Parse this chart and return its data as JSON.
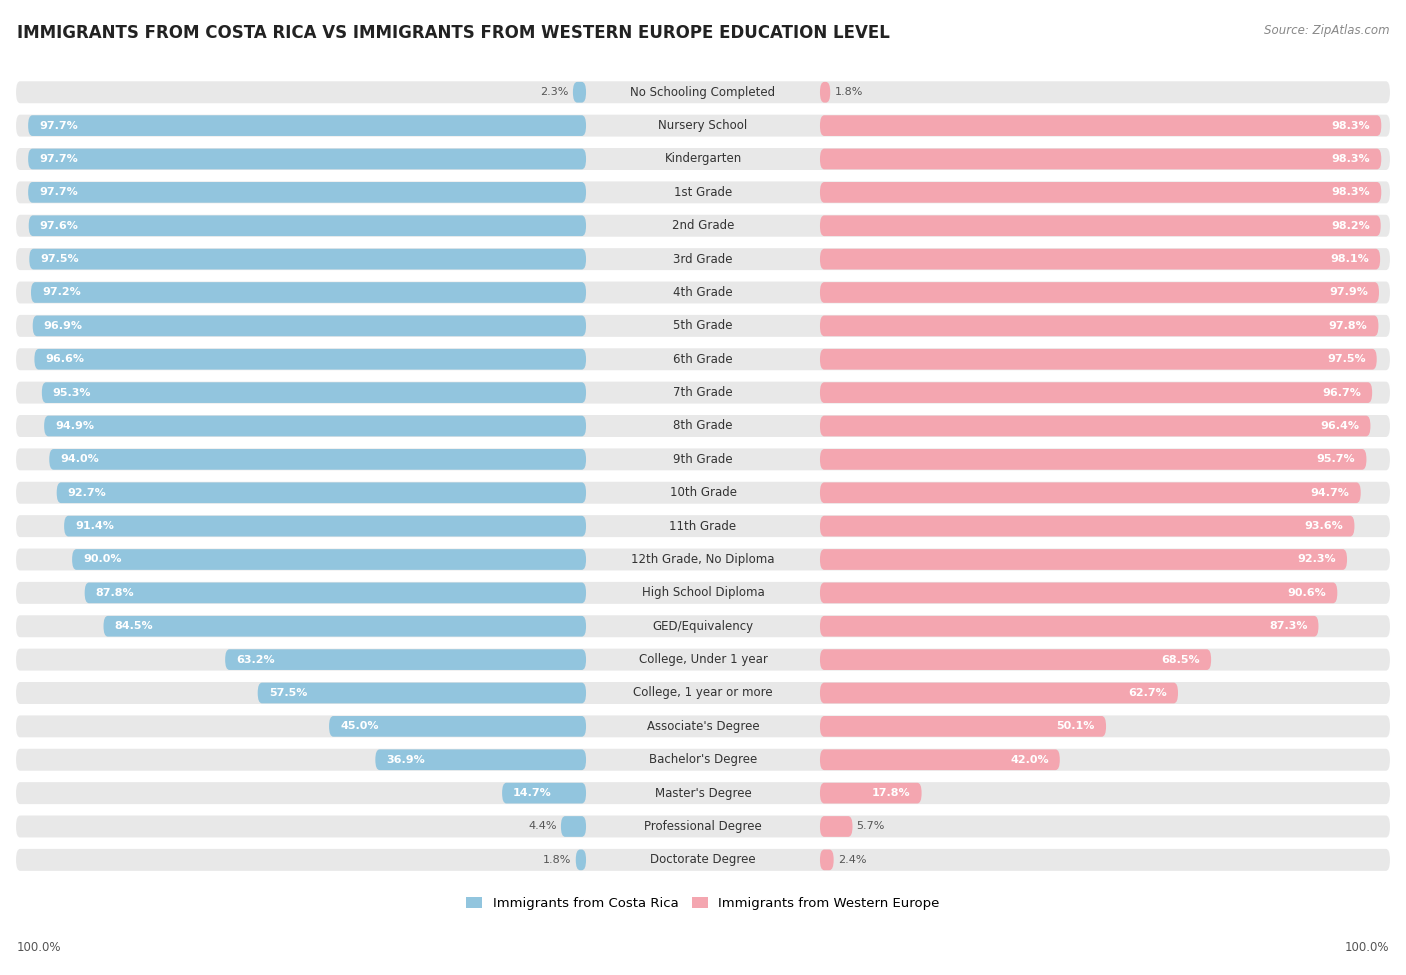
{
  "title": "IMMIGRANTS FROM COSTA RICA VS IMMIGRANTS FROM WESTERN EUROPE EDUCATION LEVEL",
  "source": "Source: ZipAtlas.com",
  "categories": [
    "No Schooling Completed",
    "Nursery School",
    "Kindergarten",
    "1st Grade",
    "2nd Grade",
    "3rd Grade",
    "4th Grade",
    "5th Grade",
    "6th Grade",
    "7th Grade",
    "8th Grade",
    "9th Grade",
    "10th Grade",
    "11th Grade",
    "12th Grade, No Diploma",
    "High School Diploma",
    "GED/Equivalency",
    "College, Under 1 year",
    "College, 1 year or more",
    "Associate's Degree",
    "Bachelor's Degree",
    "Master's Degree",
    "Professional Degree",
    "Doctorate Degree"
  ],
  "costa_rica": [
    2.3,
    97.7,
    97.7,
    97.7,
    97.6,
    97.5,
    97.2,
    96.9,
    96.6,
    95.3,
    94.9,
    94.0,
    92.7,
    91.4,
    90.0,
    87.8,
    84.5,
    63.2,
    57.5,
    45.0,
    36.9,
    14.7,
    4.4,
    1.8
  ],
  "western_europe": [
    1.8,
    98.3,
    98.3,
    98.3,
    98.2,
    98.1,
    97.9,
    97.8,
    97.5,
    96.7,
    96.4,
    95.7,
    94.7,
    93.6,
    92.3,
    90.6,
    87.3,
    68.5,
    62.7,
    50.1,
    42.0,
    17.8,
    5.7,
    2.4
  ],
  "blue_color": "#92C5DE",
  "pink_color": "#F4A6B0",
  "row_bg_color": "#E8E8E8",
  "white_color": "#FFFFFF",
  "title_fontsize": 12,
  "label_fontsize": 8.5,
  "value_fontsize": 8,
  "legend_fontsize": 9.5,
  "legend_label_cr": "Immigrants from Costa Rica",
  "legend_label_we": "Immigrants from Western Europe"
}
